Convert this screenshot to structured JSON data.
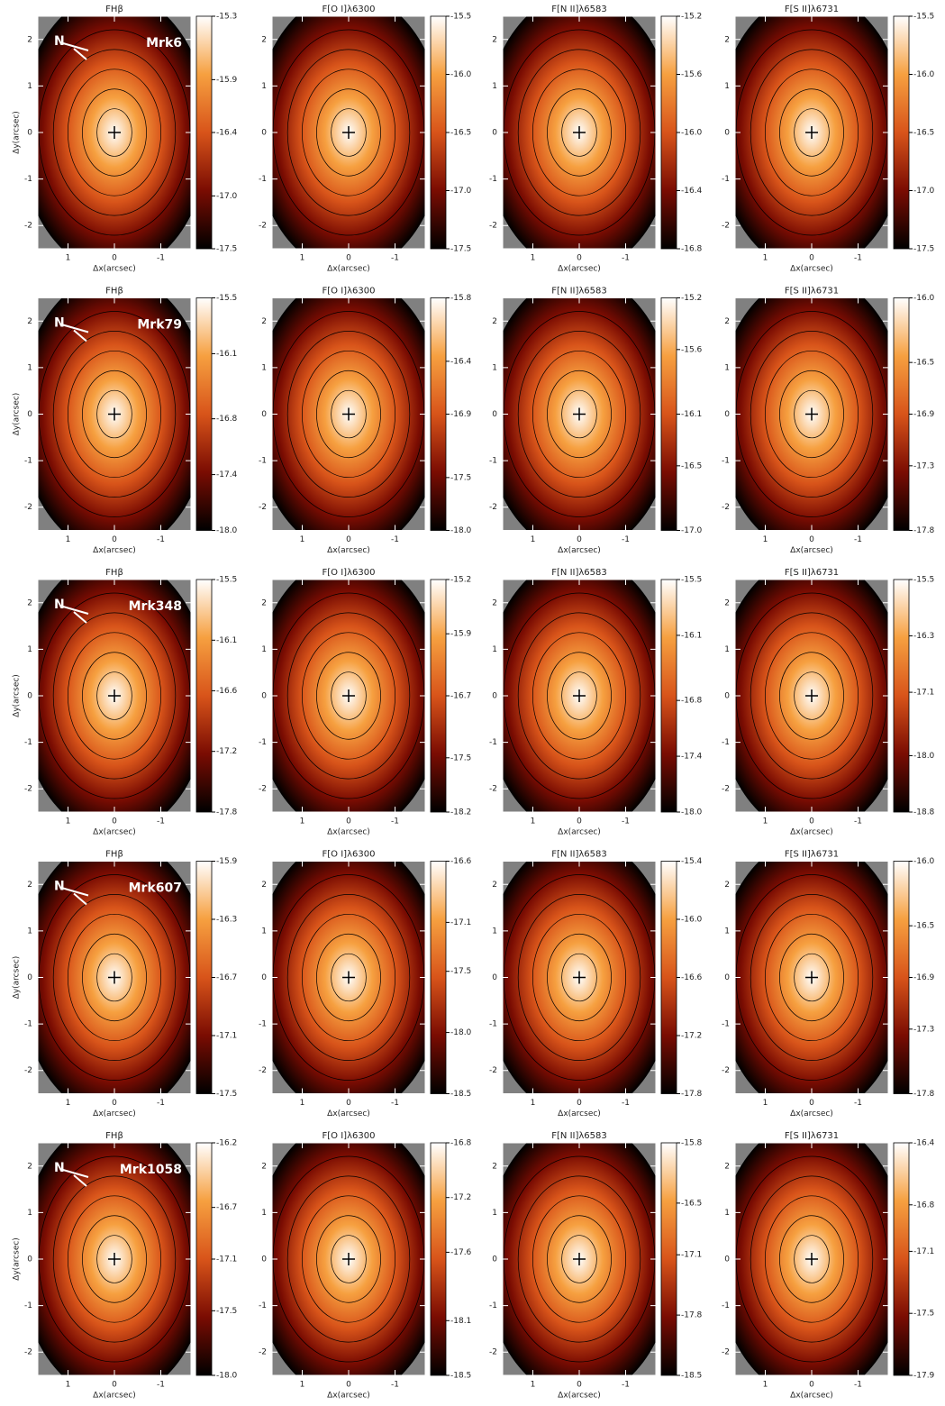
{
  "chart_data": [
    {
      "type": "map",
      "title": "FHβ",
      "xlabel": "Δx(arcsec)",
      "ylabel": "Δy(arcsec)",
      "annotation": "Mrk6",
      "north_label": "N",
      "xlim": [
        1.65,
        -1.65
      ],
      "xticks": [
        1,
        0,
        -1
      ],
      "ylim": [
        -2.5,
        2.5
      ],
      "yticks": [
        -2,
        -1,
        0,
        1,
        2
      ],
      "zlim": [
        -17.5,
        -15.3
      ],
      "zticks": [
        -15.3,
        -15.9,
        -16.4,
        {
          "value": -17,
          "label": "-17.0"
        },
        -17.5
      ],
      "colormap": [
        "#000000",
        "#7a0c02",
        "#d8541a",
        "#f6a040",
        "#ffffff"
      ]
    },
    {
      "type": "map",
      "title": "F[O I]λ6300",
      "xlabel": "Δx(arcsec)",
      "xlim": [
        1.65,
        -1.65
      ],
      "xticks": [
        1,
        0,
        -1
      ],
      "ylim": [
        -2.5,
        2.5
      ],
      "yticks": [
        -2,
        -1,
        0,
        1,
        2
      ],
      "zlim": [
        -17.5,
        -15.5
      ],
      "zticks": [
        -15.5,
        {
          "value": -16,
          "label": "-16.0"
        },
        -16.5,
        {
          "value": -17,
          "label": "-17.0"
        },
        -17.5
      ],
      "colormap": [
        "#000000",
        "#7a0c02",
        "#d8541a",
        "#f6a040",
        "#ffffff"
      ]
    },
    {
      "type": "map",
      "title": "F[N II]λ6583",
      "xlabel": "Δx(arcsec)",
      "xlim": [
        1.65,
        -1.65
      ],
      "xticks": [
        1,
        0,
        -1
      ],
      "ylim": [
        -2.5,
        2.5
      ],
      "yticks": [
        -2,
        -1,
        0,
        1,
        2
      ],
      "zlim": [
        -16.8,
        -15.2
      ],
      "zticks": [
        -15.2,
        -15.6,
        {
          "value": -16,
          "label": "-16.0"
        },
        -16.4,
        -16.8
      ],
      "colormap": [
        "#000000",
        "#7a0c02",
        "#d8541a",
        "#f6a040",
        "#ffffff"
      ]
    },
    {
      "type": "map",
      "title": "F[S II]λ6731",
      "xlabel": "Δx(arcsec)",
      "xlim": [
        1.65,
        -1.65
      ],
      "xticks": [
        1,
        0,
        -1
      ],
      "ylim": [
        -2.5,
        2.5
      ],
      "yticks": [
        -2,
        -1,
        0,
        1,
        2
      ],
      "zlim": [
        -17.5,
        -15.5
      ],
      "zticks": [
        -15.5,
        {
          "value": -16,
          "label": "-16.0"
        },
        -16.5,
        {
          "value": -17,
          "label": "-17.0"
        },
        -17.5
      ],
      "colormap": [
        "#000000",
        "#7a0c02",
        "#d8541a",
        "#f6a040",
        "#ffffff"
      ]
    },
    {
      "type": "map",
      "title": "FHβ",
      "xlabel": "Δx(arcsec)",
      "ylabel": "Δy(arcsec)",
      "annotation": "Mrk79",
      "north_label": "N",
      "xlim": [
        1.65,
        -1.65
      ],
      "xticks": [
        1,
        0,
        -1
      ],
      "ylim": [
        -2.5,
        2.5
      ],
      "yticks": [
        -2,
        -1,
        0,
        1,
        2
      ],
      "zlim": [
        -18,
        -15.5
      ],
      "zticks": [
        -15.5,
        -16.1,
        -16.8,
        -17.4,
        {
          "value": -18,
          "label": "-18.0"
        }
      ],
      "colormap": [
        "#000000",
        "#7a0c02",
        "#d8541a",
        "#f6a040",
        "#ffffff"
      ]
    },
    {
      "type": "map",
      "title": "F[O I]λ6300",
      "xlabel": "Δx(arcsec)",
      "xlim": [
        1.65,
        -1.65
      ],
      "xticks": [
        1,
        0,
        -1
      ],
      "ylim": [
        -2.5,
        2.5
      ],
      "yticks": [
        -2,
        -1,
        0,
        1,
        2
      ],
      "zlim": [
        -18,
        -15.8
      ],
      "zticks": [
        -15.8,
        -16.4,
        -16.9,
        -17.5,
        {
          "value": -18,
          "label": "-18.0"
        }
      ],
      "colormap": [
        "#000000",
        "#7a0c02",
        "#d8541a",
        "#f6a040",
        "#ffffff"
      ]
    },
    {
      "type": "map",
      "title": "F[N II]λ6583",
      "xlabel": "Δx(arcsec)",
      "xlim": [
        1.65,
        -1.65
      ],
      "xticks": [
        1,
        0,
        -1
      ],
      "ylim": [
        -2.5,
        2.5
      ],
      "yticks": [
        -2,
        -1,
        0,
        1,
        2
      ],
      "zlim": [
        -17,
        -15.2
      ],
      "zticks": [
        -15.2,
        -15.6,
        -16.1,
        -16.5,
        {
          "value": -17,
          "label": "-17.0"
        }
      ],
      "colormap": [
        "#000000",
        "#7a0c02",
        "#d8541a",
        "#f6a040",
        "#ffffff"
      ]
    },
    {
      "type": "map",
      "title": "F[S II]λ6731",
      "xlabel": "Δx(arcsec)",
      "xlim": [
        1.65,
        -1.65
      ],
      "xticks": [
        1,
        0,
        -1
      ],
      "ylim": [
        -2.5,
        2.5
      ],
      "yticks": [
        -2,
        -1,
        0,
        1,
        2
      ],
      "zlim": [
        -17.8,
        -16
      ],
      "zticks": [
        {
          "value": -16,
          "label": "-16.0"
        },
        -16.5,
        -16.9,
        -17.3,
        -17.8
      ],
      "colormap": [
        "#000000",
        "#7a0c02",
        "#d8541a",
        "#f6a040",
        "#ffffff"
      ]
    },
    {
      "type": "map",
      "title": "FHβ",
      "xlabel": "Δx(arcsec)",
      "ylabel": "Δy(arcsec)",
      "annotation": "Mrk348",
      "north_label": "N",
      "xlim": [
        1.65,
        -1.65
      ],
      "xticks": [
        1,
        0,
        -1
      ],
      "ylim": [
        -2.5,
        2.5
      ],
      "yticks": [
        -2,
        -1,
        0,
        1,
        2
      ],
      "zlim": [
        -17.8,
        -15.5
      ],
      "zticks": [
        -15.5,
        -16.1,
        -16.6,
        -17.2,
        -17.8
      ],
      "colormap": [
        "#000000",
        "#7a0c02",
        "#d8541a",
        "#f6a040",
        "#ffffff"
      ]
    },
    {
      "type": "map",
      "title": "F[O I]λ6300",
      "xlabel": "Δx(arcsec)",
      "xlim": [
        1.65,
        -1.65
      ],
      "xticks": [
        1,
        0,
        -1
      ],
      "ylim": [
        -2.5,
        2.5
      ],
      "yticks": [
        -2,
        -1,
        0,
        1,
        2
      ],
      "zlim": [
        -18.2,
        -15.2
      ],
      "zticks": [
        -15.2,
        -15.9,
        -16.7,
        -17.5,
        -18.2
      ],
      "colormap": [
        "#000000",
        "#7a0c02",
        "#d8541a",
        "#f6a040",
        "#ffffff"
      ]
    },
    {
      "type": "map",
      "title": "F[N II]λ6583",
      "xlabel": "Δx(arcsec)",
      "xlim": [
        1.65,
        -1.65
      ],
      "xticks": [
        1,
        0,
        -1
      ],
      "ylim": [
        -2.5,
        2.5
      ],
      "yticks": [
        -2,
        -1,
        0,
        1,
        2
      ],
      "zlim": [
        -18,
        -15.5
      ],
      "zticks": [
        -15.5,
        -16.1,
        -16.8,
        -17.4,
        {
          "value": -18,
          "label": "-18.0"
        }
      ],
      "colormap": [
        "#000000",
        "#7a0c02",
        "#d8541a",
        "#f6a040",
        "#ffffff"
      ]
    },
    {
      "type": "map",
      "title": "F[S II]λ6731",
      "xlabel": "Δx(arcsec)",
      "xlim": [
        1.65,
        -1.65
      ],
      "xticks": [
        1,
        0,
        -1
      ],
      "ylim": [
        -2.5,
        2.5
      ],
      "yticks": [
        -2,
        -1,
        0,
        1,
        2
      ],
      "zlim": [
        -18.8,
        -15.5
      ],
      "zticks": [
        -15.5,
        -16.3,
        -17.1,
        {
          "value": -18,
          "label": "-18.0"
        },
        -18.8
      ],
      "colormap": [
        "#000000",
        "#7a0c02",
        "#d8541a",
        "#f6a040",
        "#ffffff"
      ]
    },
    {
      "type": "map",
      "title": "FHβ",
      "xlabel": "Δx(arcsec)",
      "ylabel": "Δy(arcsec)",
      "annotation": "Mrk607",
      "north_label": "N",
      "xlim": [
        1.65,
        -1.65
      ],
      "xticks": [
        1,
        0,
        -1
      ],
      "ylim": [
        -2.5,
        2.5
      ],
      "yticks": [
        -2,
        -1,
        0,
        1,
        2
      ],
      "zlim": [
        -17.5,
        -15.9
      ],
      "zticks": [
        -15.9,
        -16.3,
        -16.7,
        -17.1,
        -17.5
      ],
      "colormap": [
        "#000000",
        "#7a0c02",
        "#d8541a",
        "#f6a040",
        "#ffffff"
      ]
    },
    {
      "type": "map",
      "title": "F[O I]λ6300",
      "xlabel": "Δx(arcsec)",
      "xlim": [
        1.65,
        -1.65
      ],
      "xticks": [
        1,
        0,
        -1
      ],
      "ylim": [
        -2.5,
        2.5
      ],
      "yticks": [
        -2,
        -1,
        0,
        1,
        2
      ],
      "zlim": [
        -18.5,
        -16.6
      ],
      "zticks": [
        -16.6,
        -17.1,
        -17.5,
        {
          "value": -18,
          "label": "-18.0"
        },
        -18.5
      ],
      "colormap": [
        "#000000",
        "#7a0c02",
        "#d8541a",
        "#f6a040",
        "#ffffff"
      ]
    },
    {
      "type": "map",
      "title": "F[N II]λ6583",
      "xlabel": "Δx(arcsec)",
      "xlim": [
        1.65,
        -1.65
      ],
      "xticks": [
        1,
        0,
        -1
      ],
      "ylim": [
        -2.5,
        2.5
      ],
      "yticks": [
        -2,
        -1,
        0,
        1,
        2
      ],
      "zlim": [
        -17.8,
        -15.4
      ],
      "zticks": [
        -15.4,
        {
          "value": -16,
          "label": "-16.0"
        },
        -16.6,
        -17.2,
        -17.8
      ],
      "colormap": [
        "#000000",
        "#7a0c02",
        "#d8541a",
        "#f6a040",
        "#ffffff"
      ]
    },
    {
      "type": "map",
      "title": "F[S II]λ6731",
      "xlabel": "Δx(arcsec)",
      "xlim": [
        1.65,
        -1.65
      ],
      "xticks": [
        1,
        0,
        -1
      ],
      "ylim": [
        -2.5,
        2.5
      ],
      "yticks": [
        -2,
        -1,
        0,
        1,
        2
      ],
      "zlim": [
        -17.8,
        -16
      ],
      "zticks": [
        {
          "value": -16,
          "label": "-16.0"
        },
        -16.5,
        -16.9,
        -17.3,
        -17.8
      ],
      "colormap": [
        "#000000",
        "#7a0c02",
        "#d8541a",
        "#f6a040",
        "#ffffff"
      ]
    },
    {
      "type": "map",
      "title": "FHβ",
      "xlabel": "Δx(arcsec)",
      "ylabel": "Δy(arcsec)",
      "annotation": "Mrk1058",
      "north_label": "N",
      "xlim": [
        1.65,
        -1.65
      ],
      "xticks": [
        1,
        0,
        -1
      ],
      "ylim": [
        -2.5,
        2.5
      ],
      "yticks": [
        -2,
        -1,
        0,
        1,
        2
      ],
      "zlim": [
        -18,
        -16.2
      ],
      "zticks": [
        -16.2,
        -16.7,
        -17.1,
        -17.5,
        {
          "value": -18,
          "label": "-18.0"
        }
      ],
      "colormap": [
        "#000000",
        "#7a0c02",
        "#d8541a",
        "#f6a040",
        "#ffffff"
      ]
    },
    {
      "type": "map",
      "title": "F[O I]λ6300",
      "xlabel": "Δx(arcsec)",
      "xlim": [
        1.65,
        -1.65
      ],
      "xticks": [
        1,
        0,
        -1
      ],
      "ylim": [
        -2.5,
        2.5
      ],
      "yticks": [
        -2,
        -1,
        0,
        1,
        2
      ],
      "zlim": [
        -18.5,
        -16.8
      ],
      "zticks": [
        -16.8,
        -17.2,
        -17.6,
        -18.1,
        -18.5
      ],
      "colormap": [
        "#000000",
        "#7a0c02",
        "#d8541a",
        "#f6a040",
        "#ffffff"
      ]
    },
    {
      "type": "map",
      "title": "F[N II]λ6583",
      "xlabel": "Δx(arcsec)",
      "xlim": [
        1.65,
        -1.65
      ],
      "xticks": [
        1,
        0,
        -1
      ],
      "ylim": [
        -2.5,
        2.5
      ],
      "yticks": [
        -2,
        -1,
        0,
        1,
        2
      ],
      "zlim": [
        -18.5,
        -15.8
      ],
      "zticks": [
        -15.8,
        -16.5,
        -17.1,
        -17.8,
        -18.5
      ],
      "colormap": [
        "#000000",
        "#7a0c02",
        "#d8541a",
        "#f6a040",
        "#ffffff"
      ]
    },
    {
      "type": "map",
      "title": "F[S II]λ6731",
      "xlabel": "Δx(arcsec)",
      "xlim": [
        1.65,
        -1.65
      ],
      "xticks": [
        1,
        0,
        -1
      ],
      "ylim": [
        -2.5,
        2.5
      ],
      "yticks": [
        -2,
        -1,
        0,
        1,
        2
      ],
      "zlim": [
        -17.9,
        -16.4
      ],
      "zticks": [
        -16.4,
        -16.8,
        -17.1,
        -17.5,
        -17.9
      ],
      "colormap": [
        "#000000",
        "#7a0c02",
        "#d8541a",
        "#f6a040",
        "#ffffff"
      ]
    }
  ]
}
